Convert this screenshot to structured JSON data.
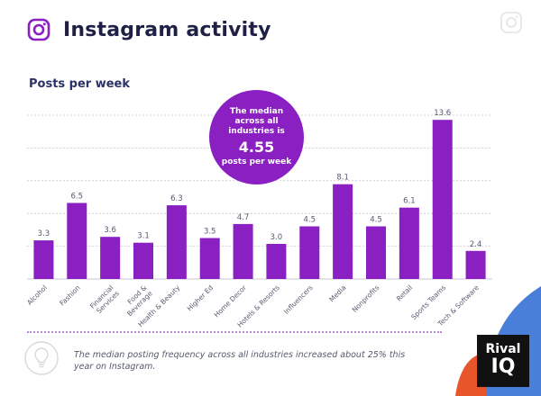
{
  "header": {
    "title": "Instagram activity"
  },
  "colors": {
    "bar": "#8a1fc2",
    "title": "#1e2145",
    "grid": "#c8c8d0"
  },
  "chart_data": {
    "type": "bar",
    "title": "Posts per week",
    "categories": [
      "Alcohol",
      "Fashion",
      "Financial Services",
      "Food & Beverage",
      "Health & Beauty",
      "Higher Ed",
      "Home Decor",
      "Hotels & Resorts",
      "Influencers",
      "Media",
      "Nonprofits",
      "Retail",
      "Sports Teams",
      "Tech & Software"
    ],
    "tick_lines": [
      [
        "Alcohol"
      ],
      [
        "Fashion"
      ],
      [
        "Financial",
        "Services"
      ],
      [
        "Food &",
        "Beverage"
      ],
      [
        "Health & Beauty"
      ],
      [
        "Higher Ed"
      ],
      [
        "Home Decor"
      ],
      [
        "Hotels & Resorts"
      ],
      [
        "Influencers"
      ],
      [
        "Media"
      ],
      [
        "Nonprofits"
      ],
      [
        "Retail"
      ],
      [
        "Sports Teams"
      ],
      [
        "Tech & Software"
      ]
    ],
    "values": [
      3.3,
      6.5,
      3.6,
      3.1,
      6.3,
      3.5,
      4.7,
      3.0,
      4.5,
      8.1,
      4.5,
      6.1,
      13.6,
      2.4
    ],
    "value_labels": [
      "3.3",
      "6.5",
      "3.6",
      "3.1",
      "6.3",
      "3.5",
      "4.7",
      "3.0",
      "4.5",
      "8.1",
      "4.5",
      "6.1",
      "13.6",
      "2.4"
    ],
    "ylim": [
      0,
      14
    ],
    "gridlines": [
      0,
      2.8,
      5.6,
      8.4,
      11.2,
      14
    ],
    "xlabel": "",
    "ylabel": ""
  },
  "callout": {
    "line1": "The median across all industries is",
    "value": "4.55",
    "line2": "posts per week"
  },
  "footer": {
    "note": "The median posting frequency across all industries increased about 25% this year on Instagram.",
    "logo_top": "Rival",
    "logo_bottom": "IQ"
  }
}
